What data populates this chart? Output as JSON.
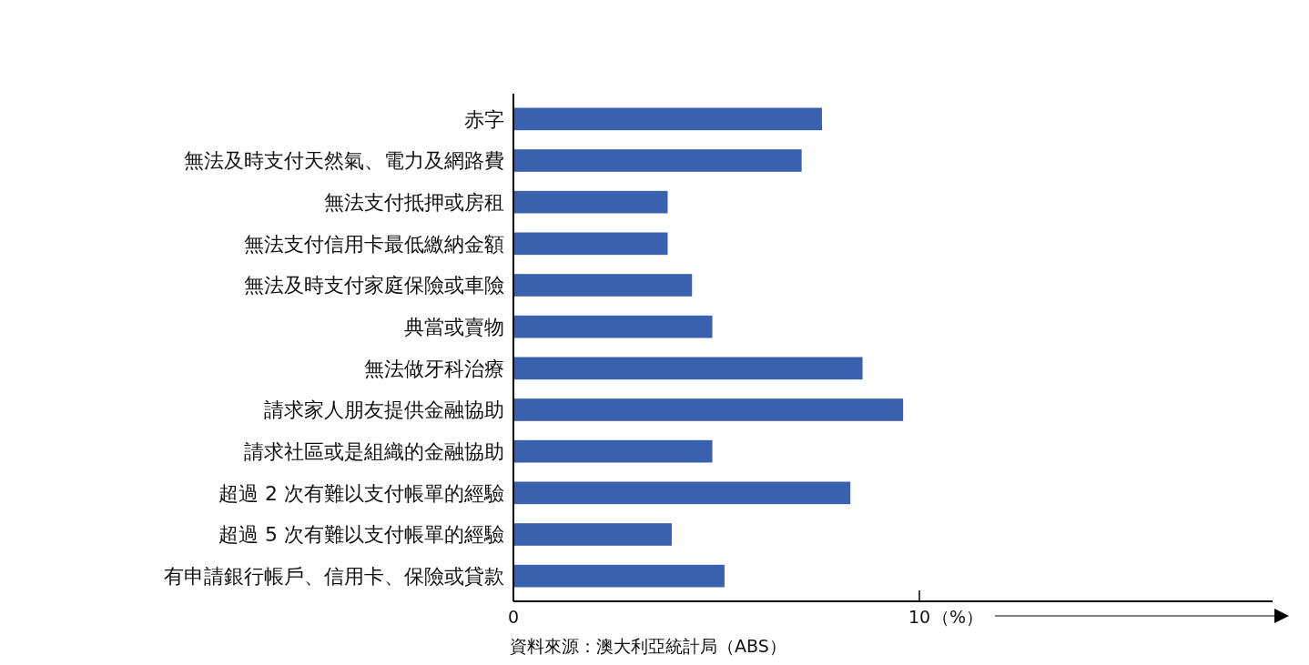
{
  "chart_data": {
    "type": "bar",
    "orientation": "horizontal",
    "categories": [
      "赤字",
      "無法及時支付天然氣、電力及網路費",
      "無法支付抵押或房租",
      "無法支付信用卡最低繳納金額",
      "無法及時支付家庭保險或車險",
      "典當或賣物",
      "無法做牙科治療",
      "請求家人朋友提供金融協助",
      "請求社區或是組織的金融協助",
      "超過 2 次有難以支付帳單的經驗",
      "超過 5 次有難以支付帳單的經驗",
      "有申請銀行帳戶、信用卡、保險或貸款"
    ],
    "values": [
      7.6,
      7.1,
      3.8,
      3.8,
      4.4,
      4.9,
      8.6,
      9.6,
      4.9,
      8.3,
      3.9,
      5.2
    ],
    "color": "#3a61ad",
    "xlim": [
      0,
      18.7
    ],
    "xticks": [
      0,
      10
    ],
    "xlabel": "（%）",
    "annotations": [
      "資料來源：澳大利亞統計局（ABS）"
    ]
  }
}
